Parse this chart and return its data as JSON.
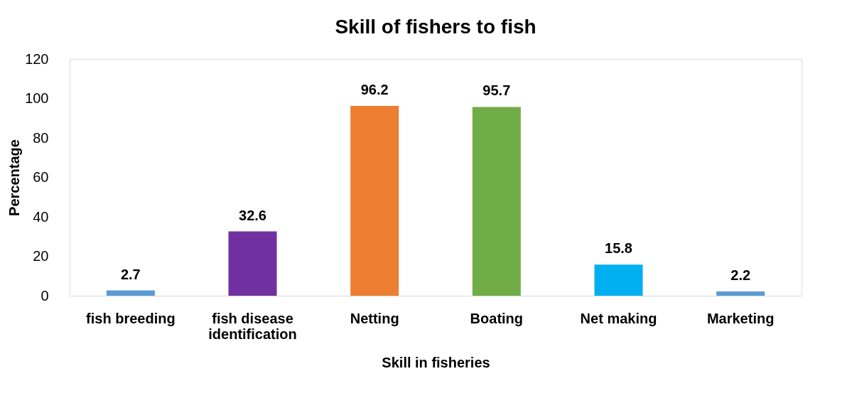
{
  "chart_data": {
    "type": "bar",
    "title": "Skill of fishers to fish",
    "xlabel": "Skill in fisheries",
    "ylabel": "Percentage",
    "categories": [
      "fish breeding",
      "fish disease identification",
      "Netting",
      "Boating",
      "Net making",
      "Marketing"
    ],
    "values": [
      2.7,
      32.6,
      96.2,
      95.7,
      15.8,
      2.2
    ],
    "colors": [
      "#5b9bd5",
      "#7030a0",
      "#ed7d31",
      "#70ad47",
      "#00b0f0",
      "#5b9bd5"
    ],
    "ylim": [
      0,
      120
    ],
    "yticks": [
      0,
      20,
      40,
      60,
      80,
      100,
      120
    ],
    "grid": false,
    "data_labels": true,
    "legend": false
  }
}
